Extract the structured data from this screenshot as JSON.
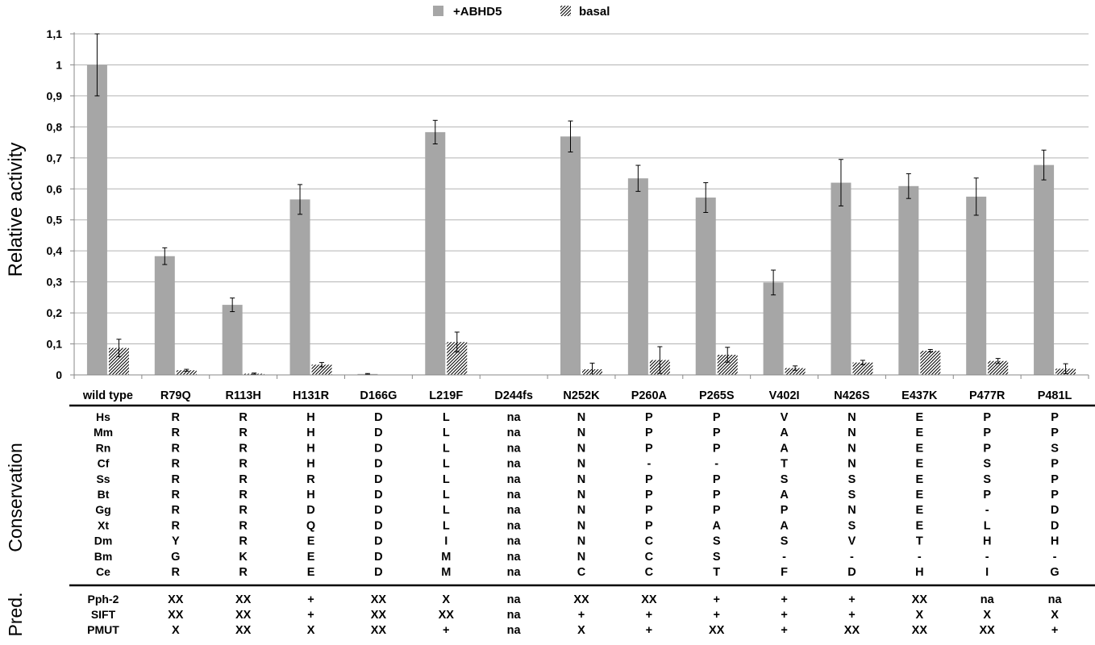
{
  "chart_data": {
    "type": "bar",
    "ylabel": "Relative activity",
    "ylim": [
      0,
      1.1
    ],
    "ytick_labels": [
      "0",
      "0,1",
      "0,2",
      "0,3",
      "0,4",
      "0,5",
      "0,6",
      "0,7",
      "0,8",
      "0,9",
      "1",
      "1,1"
    ],
    "categories": [
      "wild type",
      "R79Q",
      "R113H",
      "H131R",
      "D166G",
      "L219F",
      "D244fs",
      "N252K",
      "P260A",
      "P265S",
      "V402I",
      "N426S",
      "E437K",
      "P477R",
      "P481L"
    ],
    "grid": true,
    "legend_position": "top-center",
    "series": [
      {
        "name": "+ABHD5",
        "color": "#a6a6a6",
        "pattern": "solid",
        "values": [
          1.0,
          0.383,
          0.226,
          0.566,
          0.003,
          0.783,
          0.0,
          0.769,
          0.634,
          0.572,
          0.298,
          0.62,
          0.609,
          0.575,
          0.677
        ],
        "errors": [
          0.1,
          0.027,
          0.022,
          0.048,
          0.0015,
          0.038,
          0.0,
          0.05,
          0.042,
          0.048,
          0.04,
          0.075,
          0.04,
          0.06,
          0.048
        ]
      },
      {
        "name": "basal",
        "color": "#000000",
        "pattern": "diagonal-hatch",
        "values": [
          0.087,
          0.015,
          0.004,
          0.033,
          0.0,
          0.106,
          0.0,
          0.018,
          0.048,
          0.065,
          0.022,
          0.04,
          0.078,
          0.045,
          0.02
        ],
        "errors": [
          0.028,
          0.003,
          0.002,
          0.007,
          0.0,
          0.032,
          0.0,
          0.02,
          0.043,
          0.024,
          0.007,
          0.007,
          0.004,
          0.008,
          0.016
        ]
      }
    ]
  },
  "conservation": {
    "title": "Conservation",
    "species": [
      "Hs",
      "Mm",
      "Rn",
      "Cf",
      "Ss",
      "Bt",
      "Gg",
      "Xt",
      "Dm",
      "Bm",
      "Ce"
    ],
    "rows": [
      [
        "R",
        "R",
        "H",
        "D",
        "L",
        "na",
        "N",
        "P",
        "P",
        "V",
        "N",
        "E",
        "P",
        "P"
      ],
      [
        "R",
        "R",
        "H",
        "D",
        "L",
        "na",
        "N",
        "P",
        "P",
        "A",
        "N",
        "E",
        "P",
        "P"
      ],
      [
        "R",
        "R",
        "H",
        "D",
        "L",
        "na",
        "N",
        "P",
        "P",
        "A",
        "N",
        "E",
        "P",
        "S"
      ],
      [
        "R",
        "R",
        "H",
        "D",
        "L",
        "na",
        "N",
        "-",
        "-",
        "T",
        "N",
        "E",
        "S",
        "P"
      ],
      [
        "R",
        "R",
        "R",
        "D",
        "L",
        "na",
        "N",
        "P",
        "P",
        "S",
        "S",
        "E",
        "S",
        "P"
      ],
      [
        "R",
        "R",
        "H",
        "D",
        "L",
        "na",
        "N",
        "P",
        "P",
        "A",
        "S",
        "E",
        "P",
        "P"
      ],
      [
        "R",
        "R",
        "D",
        "D",
        "L",
        "na",
        "N",
        "P",
        "P",
        "P",
        "N",
        "E",
        "-",
        "D"
      ],
      [
        "R",
        "R",
        "Q",
        "D",
        "L",
        "na",
        "N",
        "P",
        "A",
        "A",
        "S",
        "E",
        "L",
        "D"
      ],
      [
        "Y",
        "R",
        "E",
        "D",
        "I",
        "na",
        "N",
        "C",
        "S",
        "S",
        "V",
        "T",
        "H",
        "H"
      ],
      [
        "G",
        "K",
        "E",
        "D",
        "M",
        "na",
        "N",
        "C",
        "S",
        "-",
        "-",
        "-",
        "-",
        "-"
      ],
      [
        "R",
        "R",
        "E",
        "D",
        "M",
        "na",
        "C",
        "C",
        "T",
        "F",
        "D",
        "H",
        "I",
        "G"
      ]
    ]
  },
  "prediction": {
    "title": "Pred.",
    "tools": [
      "Pph-2",
      "SIFT",
      "PMUT"
    ],
    "rows": [
      [
        "XX",
        "XX",
        "+",
        "XX",
        "X",
        "na",
        "XX",
        "XX",
        "+",
        "+",
        "+",
        "XX",
        "na",
        "na"
      ],
      [
        "XX",
        "XX",
        "+",
        "XX",
        "XX",
        "na",
        "+",
        "+",
        "+",
        "+",
        "+",
        "X",
        "X",
        "X"
      ],
      [
        "X",
        "XX",
        "X",
        "XX",
        "+",
        "na",
        "X",
        "+",
        "XX",
        "+",
        "XX",
        "XX",
        "XX",
        "+"
      ]
    ]
  }
}
